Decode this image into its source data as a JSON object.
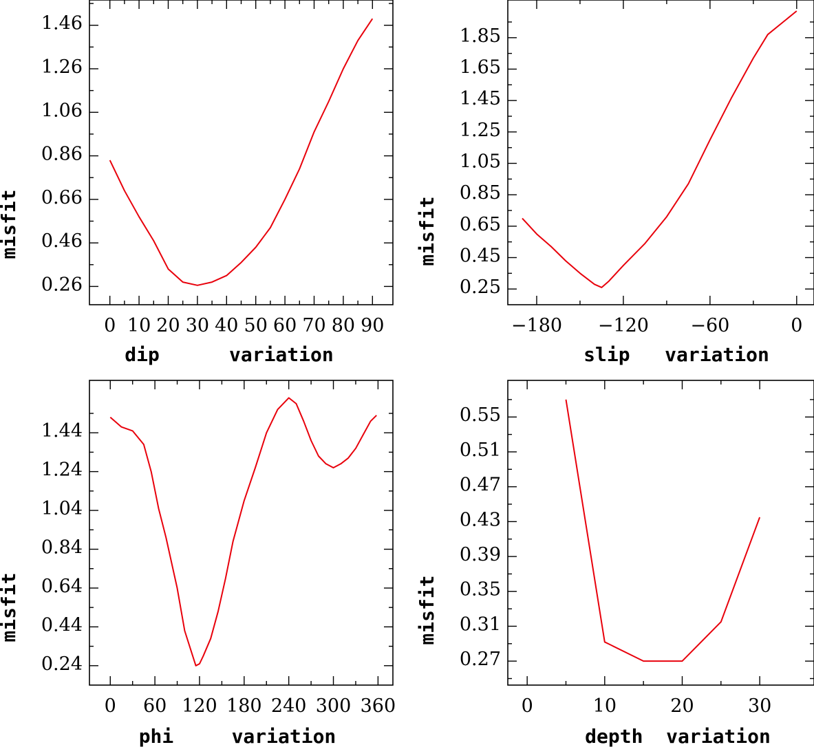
{
  "chart_data": [
    {
      "type": "line",
      "xlabel": "dip      variation",
      "ylabel": "misfit",
      "xlim": [
        -7,
        97
      ],
      "ylim": [
        0.176,
        1.576
      ],
      "xticks": [
        0,
        10,
        20,
        30,
        40,
        50,
        60,
        70,
        80,
        90
      ],
      "xtick_labels": [
        "0",
        "10",
        "20",
        "30",
        "40",
        "50",
        "60",
        "70",
        "80",
        "90"
      ],
      "yticks": [
        0.26,
        0.46,
        0.66,
        0.86,
        1.06,
        1.26,
        1.46
      ],
      "ytick_labels": [
        "0.26",
        "0.46",
        "0.66",
        "0.86",
        "1.06",
        "1.26",
        "1.46"
      ],
      "x": [
        0,
        5,
        10,
        15,
        20,
        25,
        30,
        35,
        40,
        45,
        50,
        55,
        60,
        65,
        70,
        75,
        80,
        85,
        90
      ],
      "y": [
        0.84,
        0.7,
        0.58,
        0.47,
        0.34,
        0.28,
        0.265,
        0.28,
        0.31,
        0.37,
        0.44,
        0.53,
        0.66,
        0.8,
        0.97,
        1.11,
        1.26,
        1.39,
        1.49
      ]
    },
    {
      "type": "line",
      "xlabel": "slip   variation",
      "ylabel": "misfit",
      "xlim": [
        -200,
        12
      ],
      "ylim": [
        0.15,
        2.09
      ],
      "xticks": [
        -180,
        -120,
        -60,
        0
      ],
      "xtick_labels": [
        "−180",
        "−120",
        "−60",
        "0"
      ],
      "yticks": [
        0.25,
        0.45,
        0.65,
        0.85,
        1.05,
        1.25,
        1.45,
        1.65,
        1.85
      ],
      "ytick_labels": [
        "0.25",
        "0.45",
        "0.65",
        "0.85",
        "1.05",
        "1.25",
        "1.45",
        "1.65",
        "1.85"
      ],
      "x": [
        -190,
        -180,
        -170,
        -160,
        -150,
        -140,
        -135,
        -130,
        -120,
        -105,
        -90,
        -75,
        -60,
        -45,
        -30,
        -20,
        0
      ],
      "y": [
        0.7,
        0.6,
        0.52,
        0.43,
        0.35,
        0.28,
        0.26,
        0.3,
        0.4,
        0.54,
        0.71,
        0.92,
        1.2,
        1.47,
        1.72,
        1.87,
        2.02
      ]
    },
    {
      "type": "line",
      "xlabel": "phi     variation",
      "ylabel": "misfit",
      "xlim": [
        -28,
        380
      ],
      "ylim": [
        0.14,
        1.71
      ],
      "xticks": [
        0,
        60,
        120,
        180,
        240,
        300,
        360
      ],
      "xtick_labels": [
        "0",
        "60",
        "120",
        "180",
        "240",
        "300",
        "360"
      ],
      "yticks": [
        0.24,
        0.44,
        0.64,
        0.84,
        1.04,
        1.24,
        1.44
      ],
      "ytick_labels": [
        "0.24",
        "0.44",
        "0.64",
        "0.84",
        "1.04",
        "1.24",
        "1.44"
      ],
      "x": [
        0,
        15,
        30,
        45,
        55,
        65,
        75,
        90,
        100,
        110,
        115,
        120,
        125,
        135,
        145,
        155,
        165,
        180,
        195,
        210,
        225,
        240,
        250,
        260,
        270,
        280,
        290,
        300,
        310,
        320,
        330,
        340,
        350,
        358
      ],
      "y": [
        1.52,
        1.47,
        1.45,
        1.38,
        1.24,
        1.05,
        0.9,
        0.64,
        0.42,
        0.3,
        0.24,
        0.25,
        0.29,
        0.38,
        0.52,
        0.69,
        0.88,
        1.09,
        1.26,
        1.44,
        1.56,
        1.62,
        1.59,
        1.5,
        1.4,
        1.32,
        1.28,
        1.26,
        1.28,
        1.31,
        1.36,
        1.43,
        1.5,
        1.53
      ]
    },
    {
      "type": "line",
      "xlabel": "depth  variation",
      "ylabel": "misfit",
      "xlim": [
        -2.5,
        37
      ],
      "ylim": [
        0.2425,
        0.592
      ],
      "xticks": [
        0,
        10,
        20,
        30
      ],
      "xtick_labels": [
        "0",
        "10",
        "20",
        "30"
      ],
      "yticks": [
        0.27,
        0.31,
        0.35,
        0.39,
        0.43,
        0.47,
        0.51,
        0.55
      ],
      "ytick_labels": [
        "0.27",
        "0.31",
        "0.35",
        "0.39",
        "0.43",
        "0.47",
        "0.51",
        "0.55"
      ],
      "x": [
        5,
        10,
        15,
        20,
        25,
        30
      ],
      "y": [
        0.57,
        0.292,
        0.27,
        0.27,
        0.315,
        0.435
      ]
    }
  ]
}
